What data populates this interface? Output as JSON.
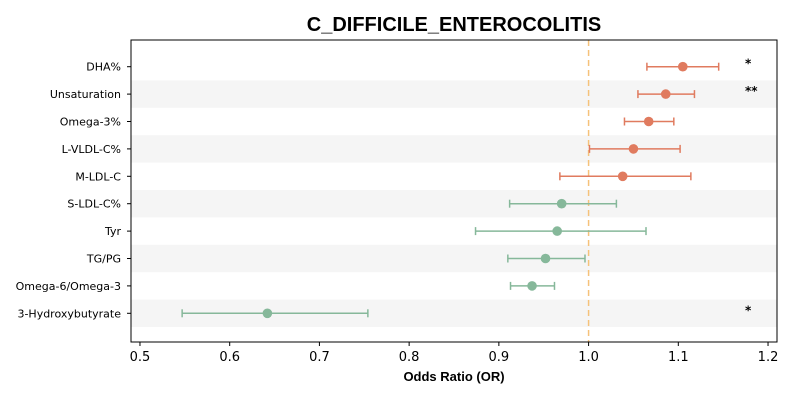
{
  "chart_data": {
    "type": "scatter",
    "title": "C_DIFFICILE_ENTEROCOLITIS",
    "xlabel": "Odds Ratio (OR)",
    "ylabel": "",
    "xlim": [
      0.49,
      1.21
    ],
    "xticks": [
      "0.5",
      "0.6",
      "0.7",
      "0.8",
      "0.9",
      "1.0",
      "1.1",
      "1.2"
    ],
    "reference_line": 1.0,
    "colors": {
      "positive": "#e07b5f",
      "negative": "#86b89a",
      "reference": "#f5c27a",
      "band": "#f5f5f5"
    },
    "rows": [
      {
        "label": "DHA%",
        "or": 1.105,
        "lo": 1.065,
        "hi": 1.145,
        "sig": "*"
      },
      {
        "label": "Unsaturation",
        "or": 1.086,
        "lo": 1.055,
        "hi": 1.118,
        "sig": "**"
      },
      {
        "label": "Omega-3%",
        "or": 1.067,
        "lo": 1.04,
        "hi": 1.095,
        "sig": ""
      },
      {
        "label": "L-VLDL-C%",
        "or": 1.05,
        "lo": 1.001,
        "hi": 1.102,
        "sig": ""
      },
      {
        "label": "M-LDL-C",
        "or": 1.038,
        "lo": 0.968,
        "hi": 1.114,
        "sig": ""
      },
      {
        "label": "S-LDL-C%",
        "or": 0.97,
        "lo": 0.912,
        "hi": 1.031,
        "sig": ""
      },
      {
        "label": "Tyr",
        "or": 0.965,
        "lo": 0.874,
        "hi": 1.064,
        "sig": ""
      },
      {
        "label": "TG/PG",
        "or": 0.952,
        "lo": 0.91,
        "hi": 0.996,
        "sig": ""
      },
      {
        "label": "Omega-6/Omega-3",
        "or": 0.937,
        "lo": 0.913,
        "hi": 0.962,
        "sig": ""
      },
      {
        "label": "3-Hydroxybutyrate",
        "or": 0.642,
        "lo": 0.547,
        "hi": 0.754,
        "sig": "*"
      }
    ]
  }
}
